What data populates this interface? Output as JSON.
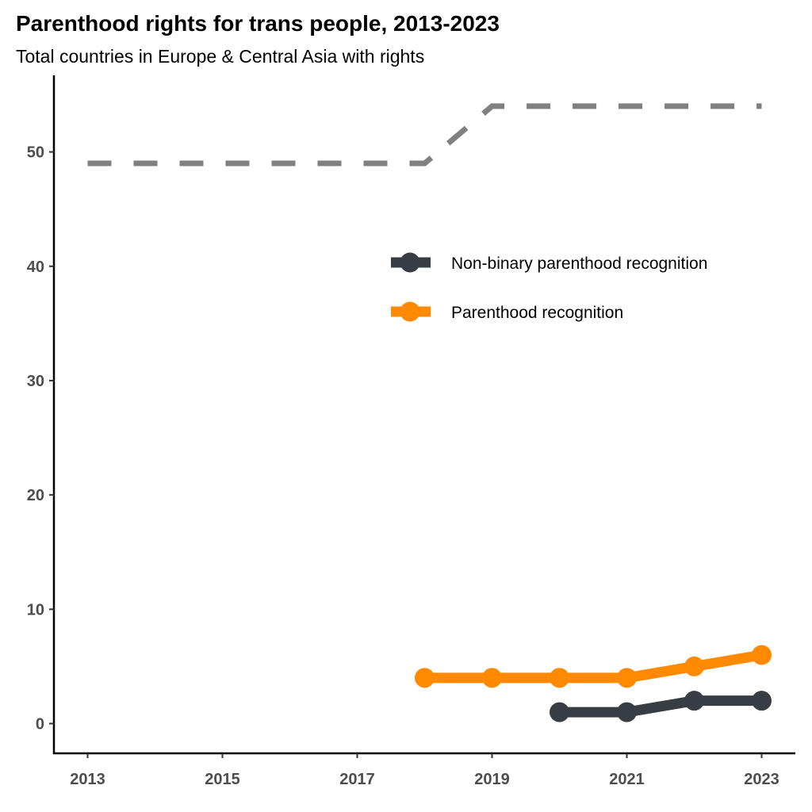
{
  "chart_data": {
    "type": "line",
    "title": "Parenthood rights for trans people, 2013-2023",
    "subtitle": "Total countries in Europe & Central Asia with rights",
    "xlabel": "",
    "ylabel": "",
    "xlim": [
      2012.5,
      2023.5
    ],
    "ylim": [
      -2.6,
      56.7
    ],
    "x_ticks": [
      2013,
      2015,
      2017,
      2019,
      2021,
      2023
    ],
    "y_ticks": [
      0,
      10,
      20,
      30,
      40,
      50
    ],
    "grid": false,
    "legend_placement": "top-right (inside)",
    "reference_line": {
      "style": "dashed",
      "color": "#808080",
      "x": [
        2013,
        2014,
        2015,
        2016,
        2017,
        2018,
        2019,
        2020,
        2021,
        2022,
        2023
      ],
      "y": [
        49,
        49,
        49,
        49,
        49,
        49,
        54,
        54,
        54,
        54,
        54
      ]
    },
    "series": [
      {
        "name": "Non-binary parenthood recognition",
        "color": "#373d42",
        "x": [
          2020,
          2021,
          2022,
          2023
        ],
        "y": [
          1,
          1,
          2,
          2
        ]
      },
      {
        "name": "Parenthood recognition",
        "color": "#ff8a00",
        "x": [
          2018,
          2019,
          2020,
          2021,
          2022,
          2023
        ],
        "y": [
          4,
          4,
          4,
          4,
          5,
          6
        ]
      }
    ]
  }
}
